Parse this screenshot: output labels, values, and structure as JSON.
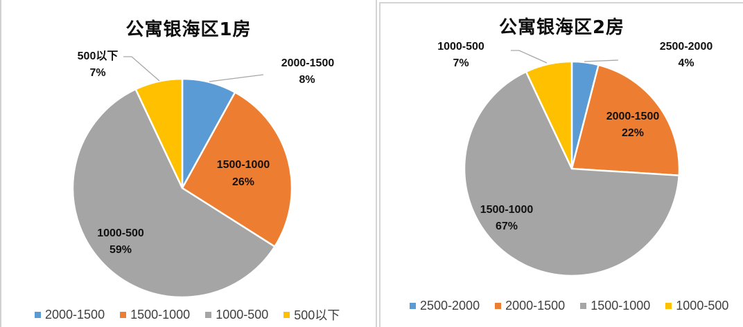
{
  "colors": {
    "blue": "#5b9bd5",
    "orange": "#ed7d31",
    "gray": "#a5a5a5",
    "yellow": "#ffc000"
  },
  "charts": [
    {
      "title": "公寓银海区1房",
      "slices": [
        {
          "name": "2000-1500",
          "pct": "8%",
          "value": 8,
          "color": "#5b9bd5"
        },
        {
          "name": "1500-1000",
          "pct": "26%",
          "value": 26,
          "color": "#ed7d31"
        },
        {
          "name": "1000-500",
          "pct": "59%",
          "value": 59,
          "color": "#a5a5a5"
        },
        {
          "name": "500以下",
          "pct": "7%",
          "value": 7,
          "color": "#ffc000"
        }
      ],
      "legend": [
        "2000-1500",
        "1500-1000",
        "1000-500",
        "500以下"
      ]
    },
    {
      "title": "公寓银海区2房",
      "slices": [
        {
          "name": "2500-2000",
          "pct": "4%",
          "value": 4,
          "color": "#5b9bd5"
        },
        {
          "name": "2000-1500",
          "pct": "22%",
          "value": 22,
          "color": "#ed7d31"
        },
        {
          "name": "1500-1000",
          "pct": "67%",
          "value": 67,
          "color": "#a5a5a5"
        },
        {
          "name": "1000-500",
          "pct": "7%",
          "value": 7,
          "color": "#ffc000"
        }
      ],
      "legend": [
        "2500-2000",
        "2000-1500",
        "1500-1000",
        "1000-500"
      ]
    }
  ],
  "chart_data": [
    {
      "type": "pie",
      "title": "公寓银海区1房",
      "categories": [
        "2000-1500",
        "1500-1000",
        "1000-500",
        "500以下"
      ],
      "values": [
        8,
        26,
        59,
        7
      ],
      "unit": "%",
      "legend_position": "bottom",
      "data_labels": [
        "2000-1500 8%",
        "1500-1000 26%",
        "1000-500 59%",
        "500以下 7%"
      ]
    },
    {
      "type": "pie",
      "title": "公寓银海区2房",
      "categories": [
        "2500-2000",
        "2000-1500",
        "1500-1000",
        "1000-500"
      ],
      "values": [
        4,
        22,
        67,
        7
      ],
      "unit": "%",
      "legend_position": "bottom",
      "data_labels": [
        "2500-2000 4%",
        "2000-1500 22%",
        "1500-1000 67%",
        "1000-500 7%"
      ]
    }
  ]
}
